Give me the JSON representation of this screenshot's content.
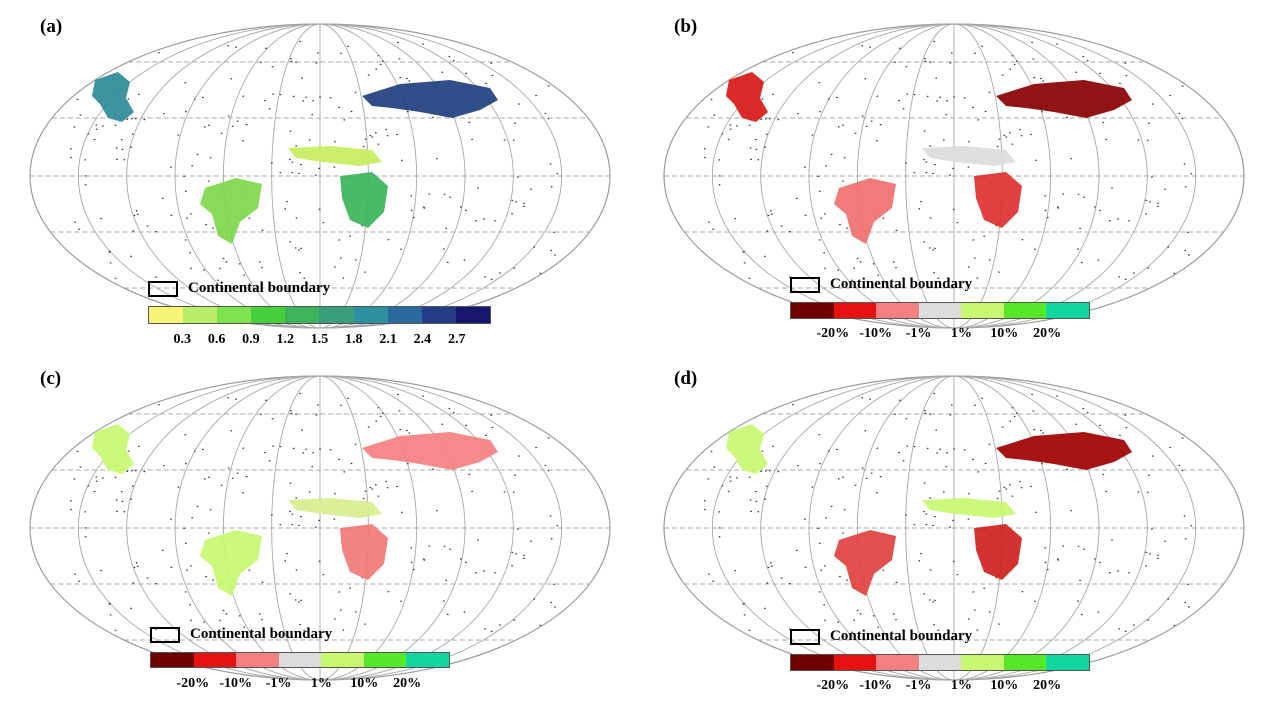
{
  "panels": [
    {
      "id": "a",
      "label": "(a)",
      "boundary_label": "Continental boundary",
      "legend_colors": [
        "#f5f57a",
        "#b8ee6a",
        "#7ee24e",
        "#45cf3a",
        "#3bb45a",
        "#3a9e7c",
        "#2e8fa0",
        "#2a6a9a",
        "#243c86",
        "#17186b"
      ],
      "legend_ticks": [
        "0.3",
        "0.6",
        "0.9",
        "1.2",
        "1.5",
        "1.8",
        "2.1",
        "2.4",
        "2.7"
      ],
      "region_colors": [
        "#2c8b96",
        "#7ed84a",
        "#1f3f7e",
        "#c7ee5e",
        "#3bb45a"
      ]
    },
    {
      "id": "b",
      "label": "(b)",
      "boundary_label": "Continental boundary",
      "legend_colors": [
        "#6e0000",
        "#e81010",
        "#f58080",
        "#dcdcdc",
        "#c8f870",
        "#58e82a",
        "#12d8a0"
      ],
      "legend_ticks": [
        "-20%",
        "-10%",
        "-1%",
        "1%",
        "10%",
        "20%"
      ],
      "region_colors": [
        "#d81818",
        "#f07070",
        "#8a0000",
        "#dcdcdc",
        "#e03030"
      ]
    },
    {
      "id": "c",
      "label": "(c)",
      "boundary_label": "Continental boundary",
      "legend_colors": [
        "#6e0000",
        "#e81010",
        "#f58080",
        "#dcdcdc",
        "#c8f870",
        "#58e82a",
        "#12d8a0"
      ],
      "legend_ticks": [
        "-20%",
        "-10%",
        "-1%",
        "1%",
        "10%",
        "20%"
      ],
      "region_colors": [
        "#c8f870",
        "#c8f870",
        "#f58080",
        "#d8ee90",
        "#f07878"
      ]
    },
    {
      "id": "d",
      "label": "(d)",
      "boundary_label": "Continental boundary",
      "legend_colors": [
        "#6e0000",
        "#e81010",
        "#f58080",
        "#dcdcdc",
        "#c8f870",
        "#58e82a",
        "#12d8a0"
      ],
      "legend_ticks": [
        "-20%",
        "-10%",
        "-1%",
        "1%",
        "10%",
        "20%"
      ],
      "region_colors": [
        "#c8f870",
        "#e04040",
        "#a00000",
        "#c8f870",
        "#d02020"
      ]
    }
  ]
}
